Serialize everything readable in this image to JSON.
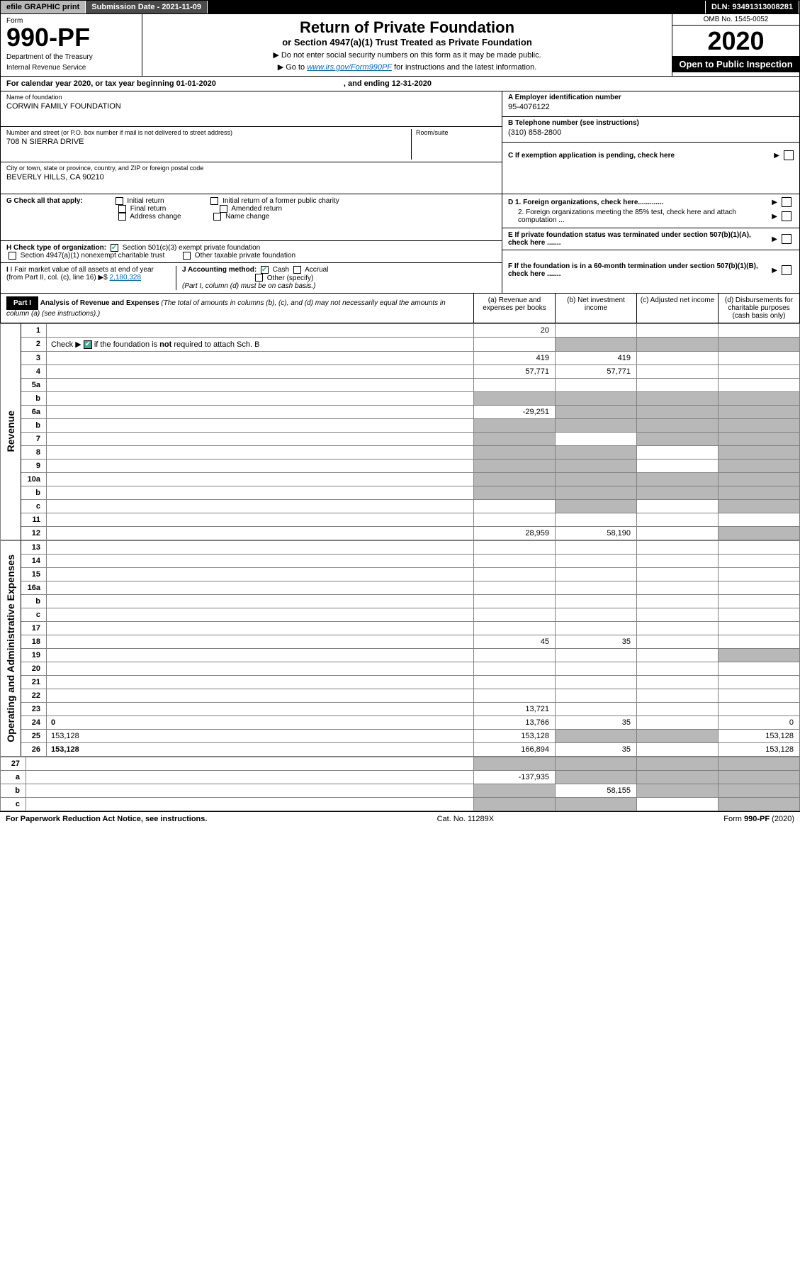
{
  "topbar": {
    "efile": "efile GRAPHIC print",
    "submission": "Submission Date - 2021-11-09",
    "dln": "DLN: 93491313008281"
  },
  "header": {
    "form_label": "Form",
    "form_no": "990-PF",
    "dept1": "Department of the Treasury",
    "dept2": "Internal Revenue Service",
    "title": "Return of Private Foundation",
    "subtitle": "or Section 4947(a)(1) Trust Treated as Private Foundation",
    "note1": "▶ Do not enter social security numbers on this form as it may be made public.",
    "note2_pre": "▶ Go to ",
    "note2_link": "www.irs.gov/Form990PF",
    "note2_post": " for instructions and the latest information.",
    "omb": "OMB No. 1545-0052",
    "year": "2020",
    "open": "Open to Public Inspection"
  },
  "calendar": {
    "text1": "For calendar year 2020, or tax year beginning 01-01-2020",
    "text2": ", and ending 12-31-2020"
  },
  "info": {
    "name_label": "Name of foundation",
    "name": "CORWIN FAMILY FOUNDATION",
    "addr_label": "Number and street (or P.O. box number if mail is not delivered to street address)",
    "addr": "708 N SIERRA DRIVE",
    "room_label": "Room/suite",
    "city_label": "City or town, state or province, country, and ZIP or foreign postal code",
    "city": "BEVERLY HILLS, CA  90210",
    "a_label": "A Employer identification number",
    "a_val": "95-4076122",
    "b_label": "B Telephone number (see instructions)",
    "b_val": "(310) 858-2800",
    "c_label": "C If exemption application is pending, check here",
    "d1_label": "D 1. Foreign organizations, check here.............",
    "d2_label": "2. Foreign organizations meeting the 85% test, check here and attach computation ...",
    "e_label": "E If private foundation status was terminated under section 507(b)(1)(A), check here .......",
    "f_label": "F If the foundation is in a 60-month termination under section 507(b)(1)(B), check here ......."
  },
  "g": {
    "label": "G Check all that apply:",
    "opts": [
      "Initial return",
      "Final return",
      "Address change",
      "Initial return of a former public charity",
      "Amended return",
      "Name change"
    ]
  },
  "h": {
    "label": "H Check type of organization:",
    "opt1": "Section 501(c)(3) exempt private foundation",
    "opt2": "Section 4947(a)(1) nonexempt charitable trust",
    "opt3": "Other taxable private foundation"
  },
  "i": {
    "label": "I Fair market value of all assets at end of year (from Part II, col. (c), line 16) ▶$",
    "val": "2,180,328"
  },
  "j": {
    "label": "J Accounting method:",
    "cash": "Cash",
    "accrual": "Accrual",
    "other": "Other (specify)",
    "note": "(Part I, column (d) must be on cash basis.)"
  },
  "part1": {
    "label": "Part I",
    "title": "Analysis of Revenue and Expenses",
    "title_note": "(The total of amounts in columns (b), (c), and (d) may not necessarily equal the amounts in column (a) (see instructions).)",
    "col_a": "(a) Revenue and expenses per books",
    "col_b": "(b) Net investment income",
    "col_c": "(c) Adjusted net income",
    "col_d": "(d) Disbursements for charitable purposes (cash basis only)"
  },
  "side_revenue": "Revenue",
  "side_expenses": "Operating and Administrative Expenses",
  "rows": [
    {
      "n": "1",
      "d": "",
      "a": "20",
      "b": "",
      "c": ""
    },
    {
      "n": "2",
      "d": "",
      "a": "",
      "b": "",
      "c": "",
      "gray_bcd": true,
      "has_check": true
    },
    {
      "n": "3",
      "d": "",
      "a": "419",
      "b": "419",
      "c": ""
    },
    {
      "n": "4",
      "d": "",
      "a": "57,771",
      "b": "57,771",
      "c": ""
    },
    {
      "n": "5a",
      "d": "",
      "a": "",
      "b": "",
      "c": ""
    },
    {
      "n": "b",
      "d": "",
      "a": "",
      "b": "",
      "c": "",
      "gray_abcd": true
    },
    {
      "n": "6a",
      "d": "",
      "a": "-29,251",
      "b": "",
      "c": "",
      "gray_bcd": true
    },
    {
      "n": "b",
      "d": "",
      "a": "",
      "b": "",
      "c": "",
      "gray_abcd": true
    },
    {
      "n": "7",
      "d": "",
      "a": "",
      "b": "",
      "c": "",
      "gray_a": true,
      "gray_cd": true
    },
    {
      "n": "8",
      "d": "",
      "a": "",
      "b": "",
      "c": "",
      "gray_ab": true,
      "gray_d": true
    },
    {
      "n": "9",
      "d": "",
      "a": "",
      "b": "",
      "c": "",
      "gray_ab": true,
      "gray_d": true
    },
    {
      "n": "10a",
      "d": "",
      "a": "",
      "b": "",
      "c": "",
      "gray_abcd": true
    },
    {
      "n": "b",
      "d": "",
      "a": "",
      "b": "",
      "c": "",
      "gray_abcd": true
    },
    {
      "n": "c",
      "d": "",
      "a": "",
      "b": "",
      "c": "",
      "gray_b": true,
      "gray_d": true
    },
    {
      "n": "11",
      "d": "",
      "a": "",
      "b": "",
      "c": ""
    },
    {
      "n": "12",
      "d": "",
      "a": "28,959",
      "b": "58,190",
      "c": "",
      "bold": true,
      "gray_d": true
    }
  ],
  "rows2": [
    {
      "n": "13",
      "d": "",
      "a": "",
      "b": "",
      "c": ""
    },
    {
      "n": "14",
      "d": "",
      "a": "",
      "b": "",
      "c": ""
    },
    {
      "n": "15",
      "d": "",
      "a": "",
      "b": "",
      "c": ""
    },
    {
      "n": "16a",
      "d": "",
      "a": "",
      "b": "",
      "c": ""
    },
    {
      "n": "b",
      "d": "",
      "a": "",
      "b": "",
      "c": ""
    },
    {
      "n": "c",
      "d": "",
      "a": "",
      "b": "",
      "c": ""
    },
    {
      "n": "17",
      "d": "",
      "a": "",
      "b": "",
      "c": ""
    },
    {
      "n": "18",
      "d": "",
      "a": "45",
      "b": "35",
      "c": ""
    },
    {
      "n": "19",
      "d": "",
      "a": "",
      "b": "",
      "c": "",
      "gray_d": true
    },
    {
      "n": "20",
      "d": "",
      "a": "",
      "b": "",
      "c": ""
    },
    {
      "n": "21",
      "d": "",
      "a": "",
      "b": "",
      "c": ""
    },
    {
      "n": "22",
      "d": "",
      "a": "",
      "b": "",
      "c": ""
    },
    {
      "n": "23",
      "d": "",
      "a": "13,721",
      "b": "",
      "c": ""
    },
    {
      "n": "24",
      "d": "0",
      "a": "13,766",
      "b": "35",
      "c": "",
      "bold": true
    },
    {
      "n": "25",
      "d": "153,128",
      "a": "153,128",
      "b": "",
      "c": "",
      "gray_bc": true
    },
    {
      "n": "26",
      "d": "153,128",
      "a": "166,894",
      "b": "35",
      "c": "",
      "bold": true
    }
  ],
  "rows3": [
    {
      "n": "27",
      "d": "",
      "a": "",
      "b": "",
      "c": "",
      "gray_abcd": true
    },
    {
      "n": "a",
      "d": "",
      "a": "-137,935",
      "b": "",
      "c": "",
      "bold": true,
      "gray_bcd": true
    },
    {
      "n": "b",
      "d": "",
      "a": "",
      "b": "58,155",
      "c": "",
      "bold": true,
      "gray_a": true,
      "gray_cd": true
    },
    {
      "n": "c",
      "d": "",
      "a": "",
      "b": "",
      "c": "",
      "bold": true,
      "gray_ab": true,
      "gray_d": true
    }
  ],
  "footer": {
    "left": "For Paperwork Reduction Act Notice, see instructions.",
    "mid": "Cat. No. 11289X",
    "right": "Form 990-PF (2020)"
  }
}
